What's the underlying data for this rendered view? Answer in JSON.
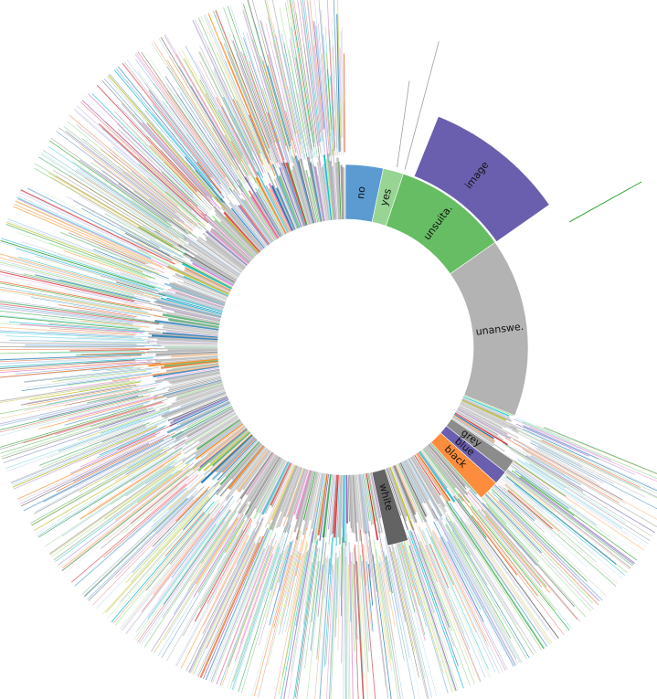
{
  "chart_data": {
    "type": "sunburst",
    "title": "",
    "segments": [
      {
        "label": "no",
        "start_deg": 0.0,
        "end_deg": 12.0,
        "color": "#5b9bd1",
        "outer": "short"
      },
      {
        "label": "yes",
        "start_deg": 12.0,
        "end_deg": 18.5,
        "color": "#98d594",
        "outer": "short"
      },
      {
        "label": "unsuita.",
        "start_deg": 18.5,
        "end_deg": 55.0,
        "color": "#66bd63",
        "outer": "short"
      },
      {
        "label": "image",
        "start_deg": 20.0,
        "end_deg": 55.0,
        "color": "#6a5fae",
        "outer": "image",
        "ring": 2
      },
      {
        "label": "unanswe.",
        "start_deg": 55.0,
        "end_deg": 112.0,
        "color": "#b3b3b3",
        "outer": "none"
      },
      {
        "label": "grey",
        "start_deg": 124.0,
        "end_deg": 128.0,
        "color": "#8c8c8c",
        "outer": "dense"
      },
      {
        "label": "blue",
        "start_deg": 128.0,
        "end_deg": 132.0,
        "color": "#6a5fae",
        "outer": "dense"
      },
      {
        "label": "black",
        "start_deg": 132.0,
        "end_deg": 138.0,
        "color": "#fd8d3c",
        "outer": "dense"
      },
      {
        "label": "white",
        "start_deg": 162.0,
        "end_deg": 168.0,
        "color": "#636363",
        "outer": "dense"
      }
    ],
    "palette": [
      "#1f77b4",
      "#ff7f0e",
      "#2ca02c",
      "#9467bd",
      "#8c8c8c",
      "#17becf",
      "#bcbd22",
      "#d62728",
      "#e377c2",
      "#7f7f7f",
      "#aec7e8",
      "#98df8a",
      "#c5b0d5",
      "#fdae6b",
      "#9ecae1",
      "#a1d99b",
      "#bdbdbd",
      "#6baed6",
      "#74c476",
      "#3182bd",
      "#31a354",
      "#756bb1",
      "#e6550d",
      "#636363"
    ],
    "background_color": "#ffffff"
  }
}
